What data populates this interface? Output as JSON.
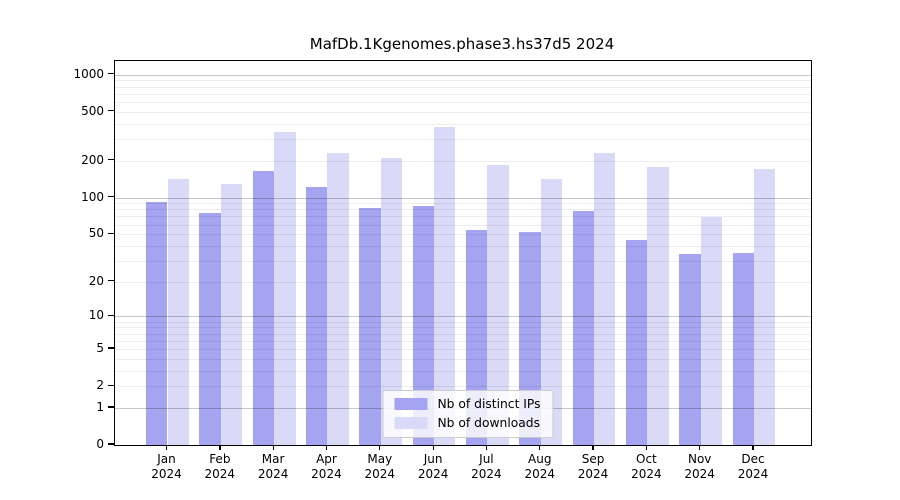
{
  "title": "MafDb.1Kgenomes.phase3.hs37d5 2024",
  "chart_data": {
    "type": "bar",
    "title": "MafDb.1Kgenomes.phase3.hs37d5 2024",
    "categories": [
      "Jan",
      "Feb",
      "Mar",
      "Apr",
      "May",
      "Jun",
      "Jul",
      "Aug",
      "Sep",
      "Oct",
      "Nov",
      "Dec"
    ],
    "x_tick_year": "2024",
    "series": [
      {
        "name": "Nb of distinct IPs",
        "color": "#a4a4f0",
        "values": [
          92,
          75,
          166,
          121,
          82,
          85,
          54,
          52,
          77,
          45,
          34,
          35
        ]
      },
      {
        "name": "Nb of downloads",
        "color": "#d9d9f8",
        "values": [
          142,
          128,
          345,
          229,
          209,
          375,
          185,
          142,
          233,
          178,
          70,
          172
        ]
      }
    ],
    "xlabel": "",
    "ylabel": "",
    "yscale": "log1p",
    "y_ticks": [
      0,
      1,
      2,
      5,
      10,
      20,
      50,
      100,
      200,
      500,
      1000
    ],
    "ylim": [
      0,
      1290
    ],
    "grid": "on",
    "grid_major_values": [
      1,
      10,
      100,
      1000
    ],
    "grid_major_color": "rgba(0,0,0,0.22)",
    "grid_minor_color": "rgba(0,0,0,0.07)",
    "axis_color": "#000000",
    "legend_position": "lower center"
  },
  "legend": {
    "items": [
      {
        "label": "Nb of distinct IPs",
        "color": "#a4a4f0"
      },
      {
        "label": "Nb of downloads",
        "color": "#d9d9f8"
      }
    ]
  }
}
